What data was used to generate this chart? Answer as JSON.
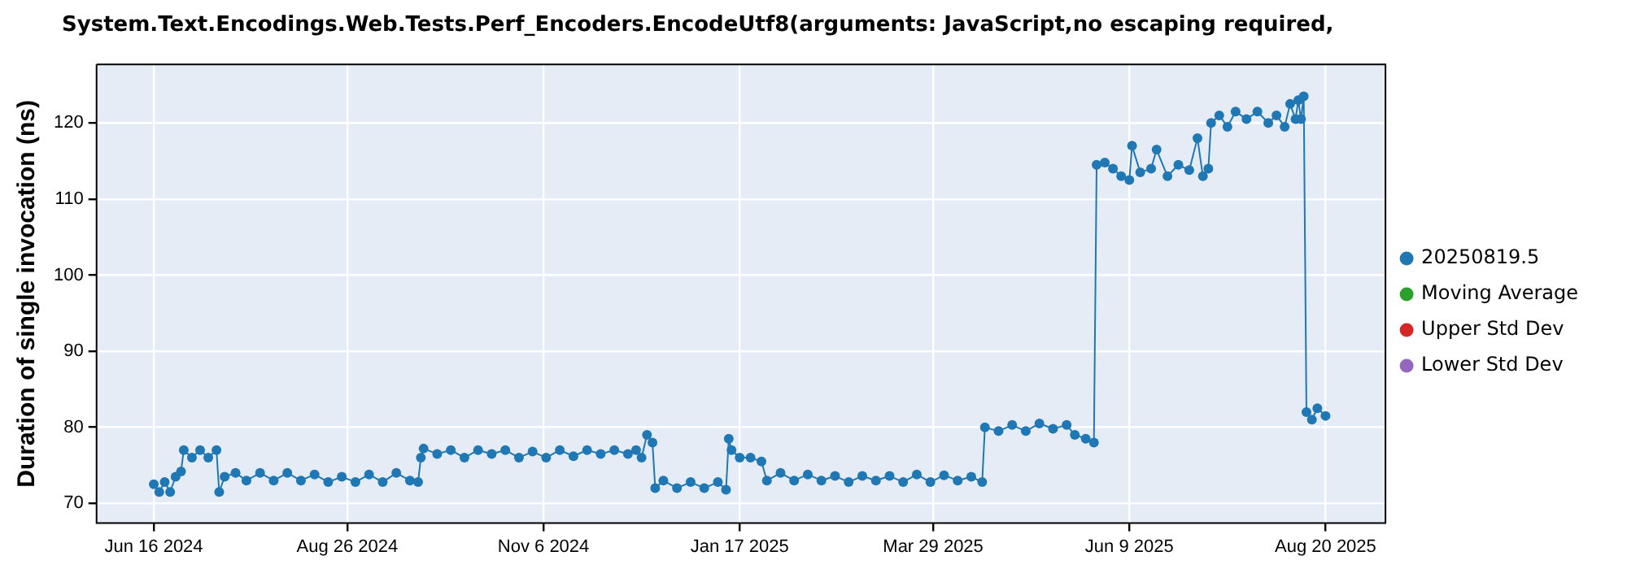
{
  "chart_data": {
    "type": "line",
    "title": "System.Text.Encodings.Web.Tests.Perf_Encoders.EncodeUtf8(arguments: JavaScript,no escaping required,",
    "ylabel": "Duration of single invocation (ns)",
    "xlim": [
      "2024-05-26",
      "2025-09-11"
    ],
    "ylim": [
      67.4,
      127.7
    ],
    "yticks": [
      70,
      80,
      90,
      100,
      110,
      120
    ],
    "xticks": [
      {
        "value": "2024-06-16",
        "label": "Jun 16 2024"
      },
      {
        "value": "2024-08-26",
        "label": "Aug 26 2024"
      },
      {
        "value": "2024-11-06",
        "label": "Nov 6 2024"
      },
      {
        "value": "2025-01-17",
        "label": "Jan 17 2025"
      },
      {
        "value": "2025-03-29",
        "label": "Mar 29 2025"
      },
      {
        "value": "2025-06-09",
        "label": "Jun 9 2025"
      },
      {
        "value": "2025-08-20",
        "label": "Aug 20 2025"
      }
    ],
    "grid": true,
    "legend": "right",
    "marker": "circle",
    "line_style": "solid",
    "x": [
      "2024-06-16",
      "2024-06-18",
      "2024-06-20",
      "2024-06-22",
      "2024-06-24",
      "2024-06-26",
      "2024-06-27",
      "2024-06-30",
      "2024-07-03",
      "2024-07-06",
      "2024-07-09",
      "2024-07-10",
      "2024-07-12",
      "2024-07-16",
      "2024-07-20",
      "2024-07-25",
      "2024-07-30",
      "2024-08-04",
      "2024-08-09",
      "2024-08-14",
      "2024-08-19",
      "2024-08-24",
      "2024-08-29",
      "2024-09-03",
      "2024-09-08",
      "2024-09-13",
      "2024-09-18",
      "2024-09-21",
      "2024-09-22",
      "2024-09-23",
      "2024-09-28",
      "2024-10-03",
      "2024-10-08",
      "2024-10-13",
      "2024-10-18",
      "2024-10-23",
      "2024-10-28",
      "2024-11-02",
      "2024-11-07",
      "2024-11-12",
      "2024-11-17",
      "2024-11-22",
      "2024-11-27",
      "2024-12-02",
      "2024-12-07",
      "2024-12-10",
      "2024-12-12",
      "2024-12-14",
      "2024-12-16",
      "2024-12-17",
      "2024-12-20",
      "2024-12-25",
      "2024-12-30",
      "2025-01-04",
      "2025-01-09",
      "2025-01-12",
      "2025-01-13",
      "2025-01-14",
      "2025-01-17",
      "2025-01-21",
      "2025-01-25",
      "2025-01-27",
      "2025-02-01",
      "2025-02-06",
      "2025-02-11",
      "2025-02-16",
      "2025-02-21",
      "2025-02-26",
      "2025-03-03",
      "2025-03-08",
      "2025-03-13",
      "2025-03-18",
      "2025-03-23",
      "2025-03-28",
      "2025-04-02",
      "2025-04-07",
      "2025-04-12",
      "2025-04-16",
      "2025-04-17",
      "2025-04-22",
      "2025-04-27",
      "2025-05-02",
      "2025-05-07",
      "2025-05-12",
      "2025-05-17",
      "2025-05-20",
      "2025-05-24",
      "2025-05-27",
      "2025-05-28",
      "2025-05-31",
      "2025-06-03",
      "2025-06-06",
      "2025-06-09",
      "2025-06-10",
      "2025-06-13",
      "2025-06-17",
      "2025-06-19",
      "2025-06-23",
      "2025-06-27",
      "2025-07-01",
      "2025-07-04",
      "2025-07-06",
      "2025-07-08",
      "2025-07-09",
      "2025-07-12",
      "2025-07-15",
      "2025-07-18",
      "2025-07-22",
      "2025-07-26",
      "2025-07-30",
      "2025-08-02",
      "2025-08-05",
      "2025-08-07",
      "2025-08-09",
      "2025-08-10",
      "2025-08-11",
      "2025-08-12",
      "2025-08-13",
      "2025-08-15",
      "2025-08-17",
      "2025-08-20"
    ],
    "series": [
      {
        "name": "20250819.5",
        "color": "#1f77b4",
        "values": [
          72.5,
          71.5,
          72.8,
          71.5,
          73.5,
          74.2,
          77,
          76,
          77,
          76,
          77,
          71.5,
          73.5,
          74,
          73,
          74,
          73,
          74,
          73,
          73.8,
          72.8,
          73.5,
          72.8,
          73.8,
          72.8,
          74,
          73,
          72.8,
          76,
          77.2,
          76.5,
          77,
          76,
          77,
          76.5,
          77,
          76,
          76.8,
          76,
          77,
          76.2,
          77,
          76.5,
          77,
          76.5,
          77,
          76,
          79,
          78,
          72,
          73,
          72,
          72.8,
          72,
          72.8,
          71.8,
          78.5,
          77,
          76,
          76,
          75.5,
          73,
          74,
          73,
          73.8,
          73,
          73.6,
          72.8,
          73.6,
          73,
          73.6,
          72.8,
          73.8,
          72.8,
          73.7,
          73,
          73.5,
          72.8,
          80,
          79.5,
          80.3,
          79.5,
          80.5,
          79.8,
          80.3,
          79,
          78.5,
          78,
          114.5,
          114.8,
          114,
          113,
          112.5,
          117,
          113.5,
          114,
          116.5,
          113,
          114.5,
          113.8,
          118,
          113,
          114,
          120,
          121,
          119.5,
          121.5,
          120.5,
          121.5,
          120,
          121,
          119.5,
          122.5,
          120.5,
          123,
          120.5,
          123.5,
          82,
          81,
          82.5,
          81.5
        ]
      },
      {
        "name": "Moving Average",
        "color": "#2ca02c",
        "values": [
          null,
          null,
          null,
          null,
          null,
          null,
          null,
          null,
          null,
          null,
          null,
          null,
          null,
          null,
          null,
          null,
          null,
          null,
          null,
          null,
          null,
          null,
          null,
          null,
          null,
          null,
          null,
          null,
          null,
          null,
          null,
          null,
          null,
          null,
          null,
          null,
          null,
          null,
          null,
          null,
          null,
          null,
          null,
          null,
          null,
          null,
          null,
          null,
          null,
          null,
          null,
          null,
          null,
          null,
          null,
          null,
          null,
          null,
          null,
          null,
          null,
          null,
          null,
          null,
          null,
          null,
          null,
          null,
          null,
          null,
          null,
          null,
          null,
          null,
          null,
          null,
          null,
          null,
          null,
          null,
          null,
          null,
          null,
          null,
          null,
          null,
          null,
          null,
          null,
          null,
          null,
          null,
          null,
          null,
          null,
          null,
          null,
          null,
          null,
          null,
          null,
          null,
          null,
          null,
          null,
          null,
          null,
          null,
          null,
          null,
          null,
          null,
          null,
          null,
          null,
          null,
          null,
          null,
          null,
          null,
          null
        ]
      },
      {
        "name": "Upper Std Dev",
        "color": "#d62728",
        "values": [
          null,
          null,
          null,
          null,
          null,
          null,
          null,
          null,
          null,
          null,
          null,
          null,
          null,
          null,
          null,
          null,
          null,
          null,
          null,
          null,
          null,
          null,
          null,
          null,
          null,
          null,
          null,
          null,
          null,
          null,
          null,
          null,
          null,
          null,
          null,
          null,
          null,
          null,
          null,
          null,
          null,
          null,
          null,
          null,
          null,
          null,
          null,
          null,
          null,
          null,
          null,
          null,
          null,
          null,
          null,
          null,
          null,
          null,
          null,
          null,
          null,
          null,
          null,
          null,
          null,
          null,
          null,
          null,
          null,
          null,
          null,
          null,
          null,
          null,
          null,
          null,
          null,
          null,
          null,
          null,
          null,
          null,
          null,
          null,
          null,
          null,
          null,
          null,
          null,
          null,
          null,
          null,
          null,
          null,
          null,
          null,
          null,
          null,
          null,
          null,
          null,
          null,
          null,
          null,
          null,
          null,
          null,
          null,
          null,
          null,
          null,
          null,
          null,
          null,
          null,
          null,
          null,
          null,
          null,
          null,
          null
        ]
      },
      {
        "name": "Lower Std Dev",
        "color": "#9467bd",
        "values": [
          null,
          null,
          null,
          null,
          null,
          null,
          null,
          null,
          null,
          null,
          null,
          null,
          null,
          null,
          null,
          null,
          null,
          null,
          null,
          null,
          null,
          null,
          null,
          null,
          null,
          null,
          null,
          null,
          null,
          null,
          null,
          null,
          null,
          null,
          null,
          null,
          null,
          null,
          null,
          null,
          null,
          null,
          null,
          null,
          null,
          null,
          null,
          null,
          null,
          null,
          null,
          null,
          null,
          null,
          null,
          null,
          null,
          null,
          null,
          null,
          null,
          null,
          null,
          null,
          null,
          null,
          null,
          null,
          null,
          null,
          null,
          null,
          null,
          null,
          null,
          null,
          null,
          null,
          null,
          null,
          null,
          null,
          null,
          null,
          null,
          null,
          null,
          null,
          null,
          null,
          null,
          null,
          null,
          null,
          null,
          null,
          null,
          null,
          null,
          null,
          null,
          null,
          null,
          null,
          null,
          null,
          null,
          null,
          null,
          null,
          null,
          null,
          null,
          null,
          null,
          null,
          null,
          null,
          null,
          null,
          null
        ]
      }
    ]
  }
}
